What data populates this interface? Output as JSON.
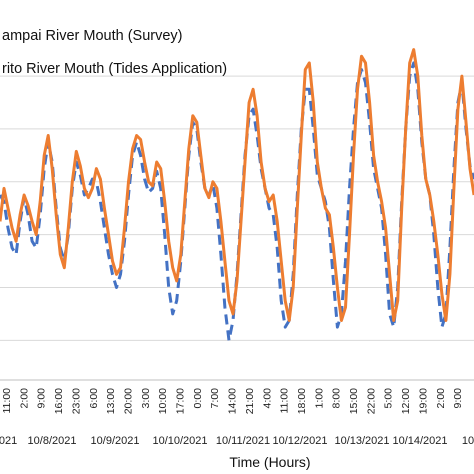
{
  "chart_data": {
    "type": "line",
    "xlabel": "Time (Hours)",
    "ylabel": "",
    "grid": true,
    "legend_position": "top-left",
    "series": [
      {
        "name": "ampai River Mouth (Survey)",
        "color": "#ED7D31",
        "style": "solid",
        "values": [
          0.3,
          0.55,
          0.4,
          0.25,
          0.15,
          0.35,
          0.5,
          0.42,
          0.3,
          0.2,
          0.45,
          0.8,
          0.95,
          0.7,
          0.35,
          0.05,
          -0.05,
          0.25,
          0.6,
          0.83,
          0.72,
          0.55,
          0.48,
          0.55,
          0.7,
          0.62,
          0.4,
          0.2,
          0.0,
          -0.1,
          -0.05,
          0.25,
          0.6,
          0.85,
          0.95,
          0.92,
          0.75,
          0.6,
          0.57,
          0.75,
          0.7,
          0.45,
          0.15,
          -0.05,
          -0.15,
          0.05,
          0.45,
          0.85,
          1.1,
          1.05,
          0.8,
          0.55,
          0.48,
          0.6,
          0.55,
          0.3,
          0.0,
          -0.3,
          -0.4,
          -0.15,
          0.3,
          0.75,
          1.2,
          1.3,
          1.1,
          0.75,
          0.55,
          0.45,
          0.5,
          0.3,
          0.0,
          -0.3,
          -0.45,
          -0.2,
          0.4,
          0.95,
          1.45,
          1.5,
          1.2,
          0.75,
          0.55,
          0.4,
          0.35,
          0.1,
          -0.2,
          -0.45,
          -0.35,
          0.2,
          0.8,
          1.3,
          1.55,
          1.5,
          1.2,
          0.8,
          0.6,
          0.45,
          0.25,
          -0.1,
          -0.45,
          -0.3,
          0.4,
          1.0,
          1.5,
          1.6,
          1.4,
          0.95,
          0.62,
          0.5,
          0.3,
          0.05,
          -0.25,
          -0.45,
          -0.1,
          0.55,
          1.15,
          1.4,
          1.05,
          0.7,
          0.5
        ]
      },
      {
        "name": "rito River Mouth (Tides Application)",
        "color": "#4472C4",
        "style": "dashed",
        "values": [
          0.5,
          0.45,
          0.25,
          0.1,
          0.05,
          0.3,
          0.48,
          0.35,
          0.15,
          0.1,
          0.35,
          0.7,
          0.9,
          0.75,
          0.4,
          0.1,
          0.0,
          0.2,
          0.55,
          0.75,
          0.65,
          0.5,
          0.55,
          0.62,
          0.6,
          0.45,
          0.25,
          0.05,
          -0.1,
          -0.2,
          -0.1,
          0.15,
          0.5,
          0.8,
          0.9,
          0.8,
          0.62,
          0.52,
          0.55,
          0.68,
          0.55,
          0.2,
          -0.2,
          -0.4,
          -0.3,
          0.0,
          0.4,
          0.8,
          1.05,
          1.0,
          0.75,
          0.55,
          0.5,
          0.58,
          0.4,
          0.05,
          -0.35,
          -0.6,
          -0.45,
          -0.1,
          0.35,
          0.8,
          1.1,
          1.15,
          0.95,
          0.7,
          0.55,
          0.4,
          0.35,
          0.1,
          -0.3,
          -0.5,
          -0.45,
          -0.1,
          0.5,
          1.0,
          1.3,
          1.3,
          1.0,
          0.65,
          0.55,
          0.45,
          0.25,
          -0.15,
          -0.5,
          -0.4,
          0.0,
          0.55,
          1.0,
          1.35,
          1.45,
          1.35,
          1.05,
          0.7,
          0.55,
          0.4,
          0.05,
          -0.4,
          -0.5,
          -0.2,
          0.45,
          1.0,
          1.4,
          1.5,
          1.3,
          0.9,
          0.62,
          0.5,
          0.2,
          -0.2,
          -0.5,
          -0.4,
          0.1,
          0.7,
          1.2,
          1.35,
          1.0,
          0.72,
          0.62
        ]
      }
    ],
    "x_tick_labels": [
      "11:00",
      "19:00",
      "3:00",
      "11:00",
      "19:00",
      "3:00",
      "11:00",
      "19:00",
      "3:00",
      "11:00",
      "19:00",
      "3:00",
      "11:00",
      "19:00",
      "3:00",
      "11:00",
      "19:00",
      "3:00",
      "11:00",
      "19:00",
      "3:00",
      "11:00",
      "19:00",
      "3:00",
      "11:00",
      "19:00",
      "3:00"
    ],
    "visible_x_tick_labels": [
      "11:00",
      "2:00",
      "9:00",
      "16:00",
      "23:00",
      "6:00",
      "13:00",
      "20:00",
      "3:00",
      "10:00",
      "17:00",
      "0:00",
      "7:00",
      "14:00",
      "21:00",
      "4:00",
      "11:00",
      "18:00",
      "1:00",
      "8:00",
      "15:00",
      "22:00",
      "5:00",
      "12:00",
      "19:00",
      "2:00",
      "9:00"
    ],
    "date_labels": [
      "021",
      "10/8/2021",
      "10/9/2021",
      "10/10/2021",
      "10/11/2021",
      "10/12/2021",
      "10/13/2021",
      "10/14/2021",
      "10"
    ],
    "ylim": [
      -0.9,
      1.9
    ]
  }
}
